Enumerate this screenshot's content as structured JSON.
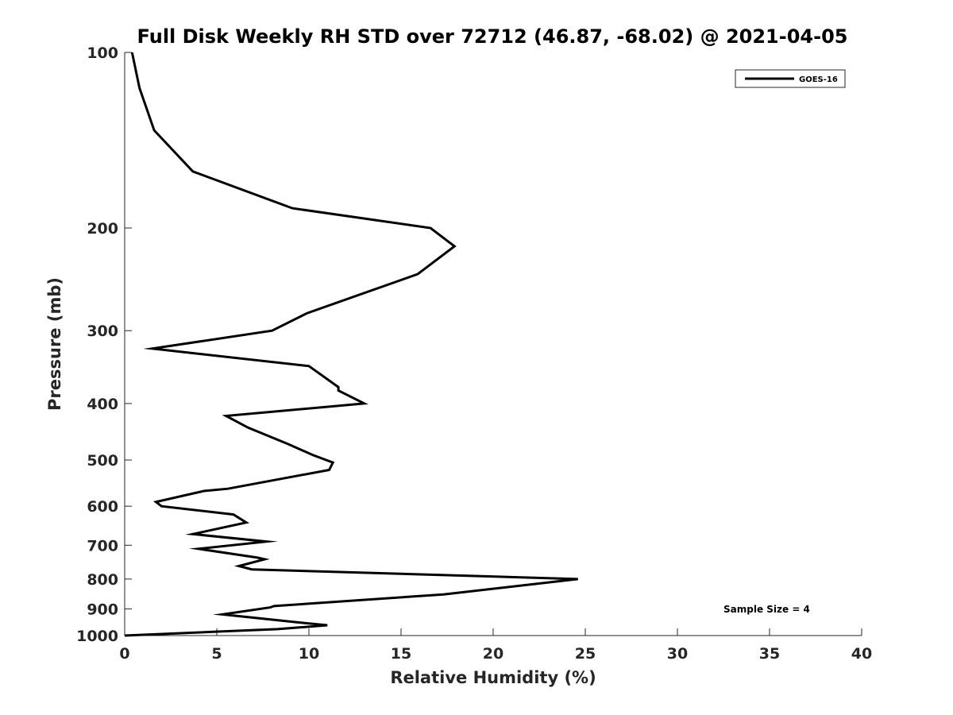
{
  "chart_data": {
    "type": "line",
    "title": "Full Disk Weekly RH STD over 72712 (46.87, -68.02) @ 2021-04-05",
    "xlabel": "Relative Humidity (%)",
    "ylabel": "Pressure (mb)",
    "xlim": [
      0,
      40
    ],
    "ylim": [
      100,
      1000
    ],
    "yscale": "log",
    "y_reversed": true,
    "grid": false,
    "legend_position": "top-right",
    "xticks": [
      0,
      5,
      10,
      15,
      20,
      25,
      30,
      35,
      40
    ],
    "xtick_labels": [
      "0",
      "5",
      "10",
      "15",
      "20",
      "25",
      "30",
      "35",
      "40"
    ],
    "yticks": [
      100,
      200,
      300,
      400,
      500,
      600,
      700,
      800,
      900,
      1000
    ],
    "ytick_labels": [
      "100",
      "200",
      "300",
      "400",
      "500",
      "600",
      "700",
      "800",
      "900",
      "1000"
    ],
    "series": [
      {
        "name": "GOES-16",
        "color": "#000000",
        "x": [
          0.4,
          0.8,
          1.6,
          3.7,
          9.1,
          16.6,
          17.9,
          15.9,
          9.9,
          8.0,
          1.5,
          10.0,
          11.6,
          11.6,
          13.0,
          5.5,
          6.7,
          8.9,
          10.2,
          11.3,
          11.1,
          5.6,
          4.3,
          1.7,
          2.0,
          5.9,
          6.6,
          3.7,
          7.7,
          4.0,
          7.2,
          7.6,
          6.2,
          6.9,
          24.6,
          17.3,
          8.1,
          7.9,
          5.3,
          9.5,
          11.0,
          8.3,
          0.0
        ],
        "y": [
          100,
          115,
          136,
          160,
          185,
          200,
          215,
          240,
          280,
          300,
          322,
          345,
          375,
          380,
          400,
          420,
          440,
          470,
          490,
          505,
          520,
          560,
          565,
          590,
          600,
          620,
          640,
          670,
          690,
          710,
          735,
          740,
          760,
          770,
          800,
          850,
          890,
          895,
          920,
          950,
          960,
          975,
          1000
        ]
      }
    ],
    "annotations": [
      "Sample Size = 4"
    ]
  }
}
